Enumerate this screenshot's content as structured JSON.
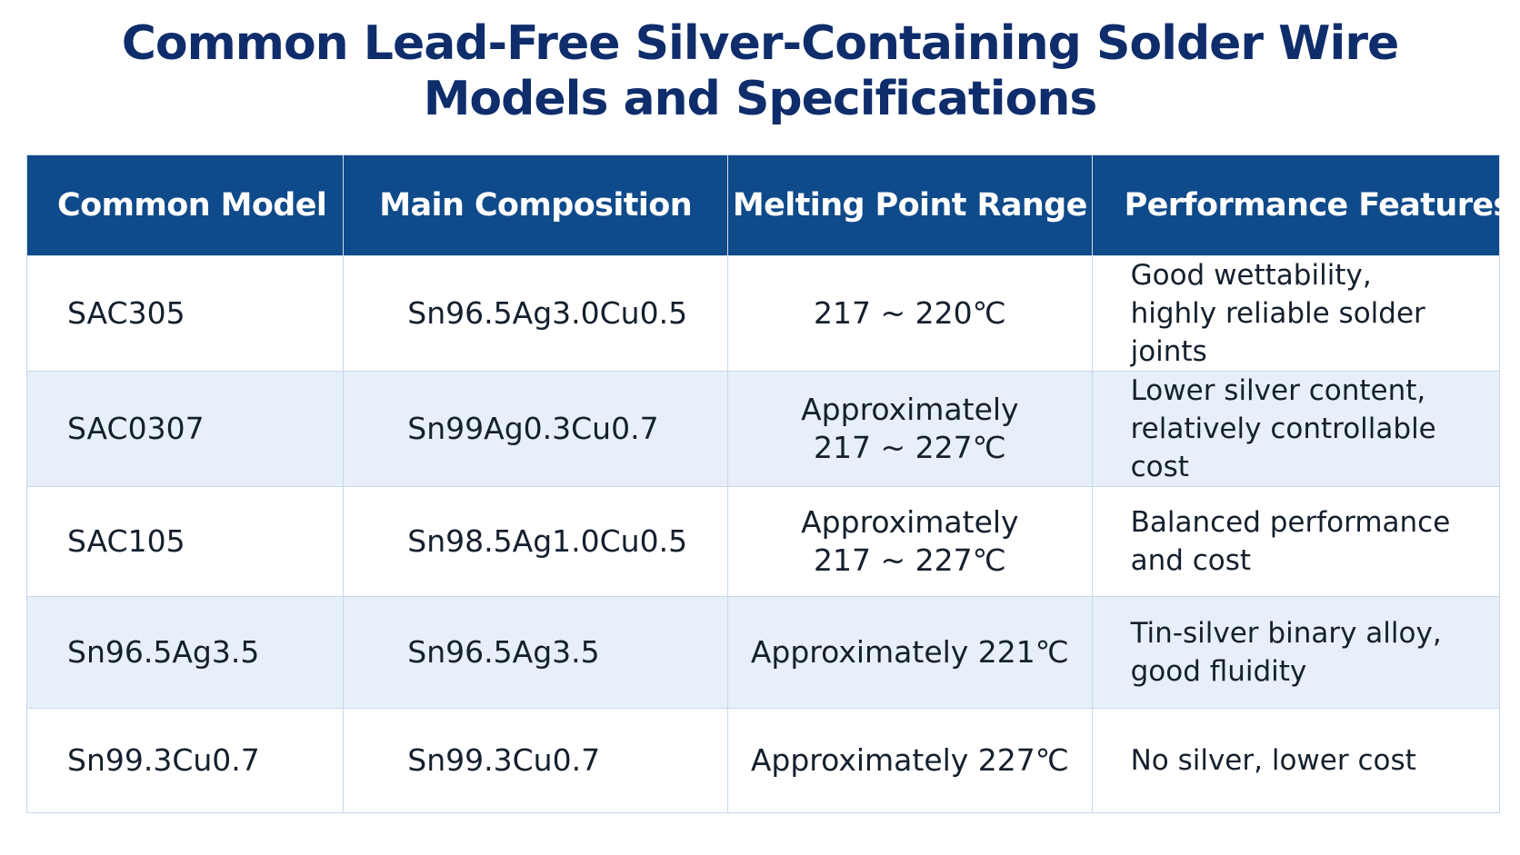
{
  "title": {
    "line1": "Common Lead-Free Silver-Containing Solder Wire",
    "line2": "Models and Specifications"
  },
  "table": {
    "headers": [
      "Common Model",
      "Main Composition",
      "Melting Point Range",
      "Performance Features"
    ],
    "rows": [
      {
        "model": "SAC305",
        "composition": "Sn96.5Ag3.0Cu0.5",
        "melting_point": [
          "217 ~ 220℃"
        ],
        "features": [
          "Good wettability,",
          "highly reliable solder joints"
        ]
      },
      {
        "model": "SAC0307",
        "composition": "Sn99Ag0.3Cu0.7",
        "melting_point": [
          "Approximately",
          "217 ~ 227℃"
        ],
        "features": [
          "Lower silver content,",
          "relatively controllable cost"
        ]
      },
      {
        "model": "SAC105",
        "composition": "Sn98.5Ag1.0Cu0.5",
        "melting_point": [
          "Approximately",
          "217 ~ 227℃"
        ],
        "features": [
          "Balanced performance",
          "and cost"
        ]
      },
      {
        "model": "Sn96.5Ag3.5",
        "composition": "Sn96.5Ag3.5",
        "melting_point": [
          "Approximately 221℃"
        ],
        "features": [
          "Tin-silver binary alloy,",
          "good fluidity"
        ]
      },
      {
        "model": "Sn99.3Cu0.7",
        "composition": "Sn99.3Cu0.7",
        "melting_point": [
          "Approximately 227℃"
        ],
        "features": [
          "No silver, lower cost"
        ]
      }
    ]
  },
  "colors": {
    "title": "#0f2d6b",
    "header_bg": "#0f4a8a",
    "header_text": "#ffffff",
    "row_alt_bg": "#e7f0f9",
    "border": "#c6d7ea"
  }
}
